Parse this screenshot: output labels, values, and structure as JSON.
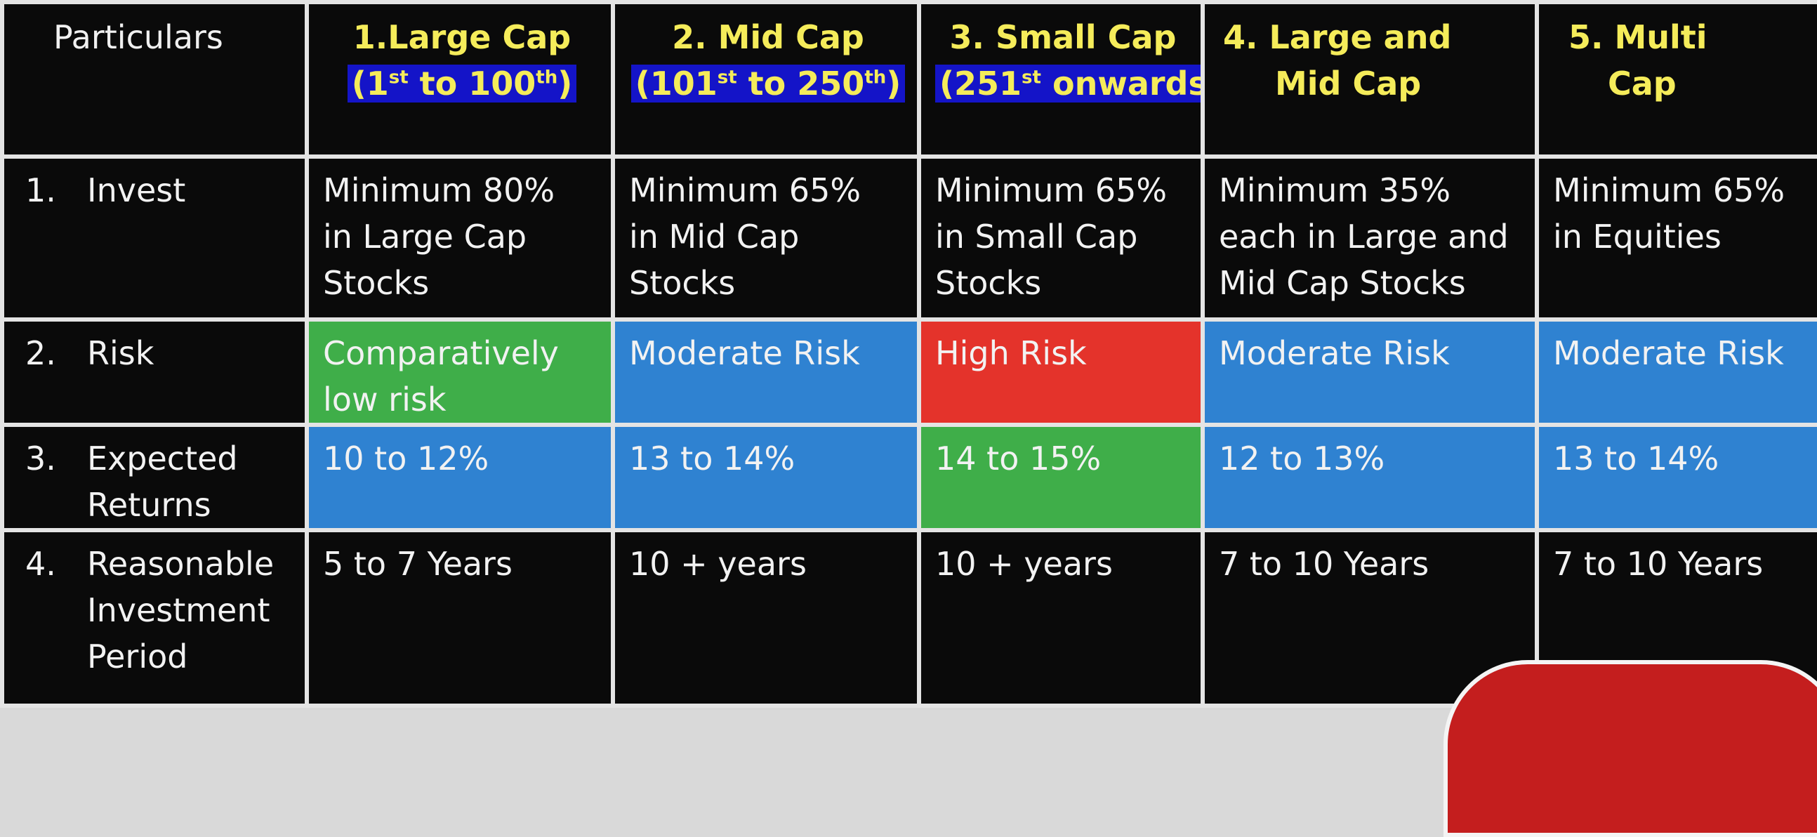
{
  "header": {
    "particulars": "Particulars",
    "columns": [
      {
        "lines": [
          "1.Large Cap"
        ],
        "range_parts": [
          "(1",
          "st",
          " to 100",
          "th",
          ")"
        ]
      },
      {
        "lines": [
          "2. Mid Cap"
        ],
        "range_parts": [
          "(101",
          "st",
          " to 250",
          "th",
          ")"
        ]
      },
      {
        "lines": [
          "3. Small Cap"
        ],
        "range_parts": [
          "(251",
          "st",
          " onwards)",
          "",
          ""
        ]
      },
      {
        "lines": [
          "4. Large and",
          "Mid Cap"
        ]
      },
      {
        "lines": [
          "5. Multi",
          "Cap"
        ]
      }
    ]
  },
  "rows": [
    {
      "num": "1.",
      "label": [
        "Invest"
      ],
      "cells": [
        {
          "lines": [
            "Minimum 80%",
            "in Large Cap",
            "Stocks"
          ],
          "bg": "none"
        },
        {
          "lines": [
            "Minimum 65%",
            "in Mid Cap",
            "Stocks"
          ],
          "bg": "none"
        },
        {
          "lines": [
            "Minimum 65%",
            "in Small Cap",
            "Stocks"
          ],
          "bg": "none"
        },
        {
          "lines": [
            "Minimum 35%",
            "each in Large and",
            "Mid Cap Stocks"
          ],
          "bg": "none"
        },
        {
          "lines": [
            "Minimum 65%",
            "in Equities"
          ],
          "bg": "none"
        }
      ]
    },
    {
      "num": "2.",
      "label": [
        "Risk"
      ],
      "cells": [
        {
          "lines": [
            "Comparatively",
            "low risk"
          ],
          "bg": "green"
        },
        {
          "lines": [
            "Moderate Risk"
          ],
          "bg": "blue"
        },
        {
          "lines": [
            "High Risk"
          ],
          "bg": "red"
        },
        {
          "lines": [
            "Moderate Risk"
          ],
          "bg": "blue"
        },
        {
          "lines": [
            "Moderate Risk"
          ],
          "bg": "blue"
        }
      ]
    },
    {
      "num": "3.",
      "label": [
        "Expected",
        "Returns"
      ],
      "cells": [
        {
          "lines": [
            "10 to 12%"
          ],
          "bg": "blue"
        },
        {
          "lines": [
            "13 to 14%"
          ],
          "bg": "blue"
        },
        {
          "lines": [
            "14 to 15%"
          ],
          "bg": "green"
        },
        {
          "lines": [
            "12 to 13%"
          ],
          "bg": "blue"
        },
        {
          "lines": [
            "13 to 14%"
          ],
          "bg": "blue"
        }
      ]
    },
    {
      "num": "4.",
      "label": [
        "Reasonable",
        "Investment",
        "Period"
      ],
      "cells": [
        {
          "lines": [
            "5 to 7 Years"
          ],
          "bg": "none"
        },
        {
          "lines": [
            "10 + years"
          ],
          "bg": "none"
        },
        {
          "lines": [
            "10 + years"
          ],
          "bg": "none"
        },
        {
          "lines": [
            "7 to 10 Years"
          ],
          "bg": "none"
        },
        {
          "lines": [
            "7 to 10 Years"
          ],
          "bg": "none"
        }
      ]
    }
  ],
  "colors": {
    "header_text": "#f5ec5a",
    "highlight": "#1414c8",
    "green": "#3fae49",
    "blue": "#2f82d1",
    "red": "#e4332b",
    "cell_bg": "#0a0a0a",
    "border": "#e4e4e4"
  }
}
